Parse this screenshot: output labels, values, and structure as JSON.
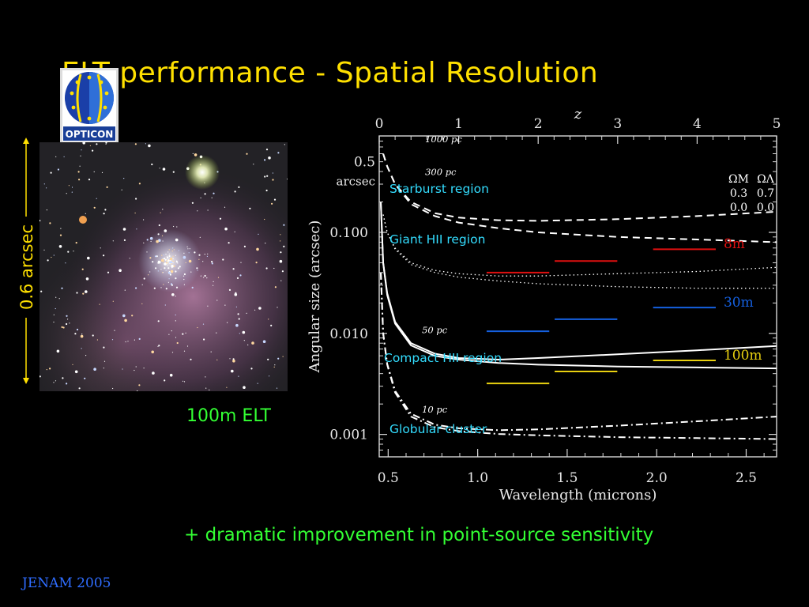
{
  "slide": {
    "title": "ELT performance - Spatial Resolution",
    "logo_text": "OPTICON",
    "scale_label": "0.6 arcsec",
    "image_caption": "100m ELT",
    "bottom_note": "+ dramatic improvement in point-source sensitivity",
    "footer": "JENAM 2005",
    "colors": {
      "title": "#ffe000",
      "caption": "#33ff33",
      "footer": "#2f6dff",
      "scale_bar": "#ffe000",
      "region_label": "#33ddff"
    }
  },
  "chart_data": {
    "type": "line",
    "xlabel": "Wavelength (microns)",
    "ylabel": "Angular size (arcsec)",
    "top_axis_label": "z",
    "xlim": [
      0.45,
      2.67
    ],
    "ylim": [
      0.0006,
      0.9
    ],
    "yscale": "log",
    "grid": false,
    "x_ticks": [
      0.5,
      1.0,
      1.5,
      2.0,
      2.5
    ],
    "x_tick_labels": [
      "0.5",
      "1.0",
      "1.5",
      "2.0",
      "2.5"
    ],
    "y_ticks": [
      0.001,
      0.01,
      0.1
    ],
    "y_tick_labels": [
      "0.001",
      "0.010",
      "0.100"
    ],
    "top_ticks": [
      0,
      1,
      2,
      3,
      4,
      5
    ],
    "top_tick_labels": [
      "0",
      "1",
      "2",
      "3",
      "4",
      "5"
    ],
    "y_extra_label": {
      "value": 0.5,
      "lines": [
        "0.5",
        "arcsec"
      ]
    },
    "cosmology_legend": {
      "header": [
        "ΩM",
        "ΩΛ"
      ],
      "rows": [
        [
          "0.3",
          "0.7"
        ],
        [
          "0.0",
          "0.0"
        ]
      ]
    },
    "series": [
      {
        "size_label": "1000 pc",
        "region": "Starburst  region",
        "style": "dashed",
        "z": [
          0.05,
          0.1,
          0.2,
          0.4,
          0.7,
          1.0,
          1.5,
          2.0,
          3.0,
          4.0,
          5.0
        ],
        "y_open": [
          0.6,
          0.45,
          0.3,
          0.2,
          0.155,
          0.14,
          0.132,
          0.13,
          0.135,
          0.145,
          0.16
        ],
        "y_flat": [
          0.6,
          0.45,
          0.3,
          0.19,
          0.145,
          0.125,
          0.11,
          0.1,
          0.09,
          0.085,
          0.08
        ]
      },
      {
        "size_label": "300 pc",
        "region": "Giant HII  region",
        "style": "dotted",
        "z": [
          0.05,
          0.1,
          0.2,
          0.4,
          0.7,
          1.0,
          1.5,
          2.0,
          3.0,
          4.0,
          5.0
        ],
        "y_open": [
          0.15,
          0.1,
          0.07,
          0.05,
          0.042,
          0.039,
          0.037,
          0.037,
          0.039,
          0.041,
          0.045
        ],
        "y_flat": [
          0.15,
          0.1,
          0.068,
          0.048,
          0.04,
          0.036,
          0.033,
          0.031,
          0.029,
          0.028,
          0.028
        ]
      },
      {
        "size_label": "50 pc",
        "region": "Compact HII region",
        "style": "solid",
        "z": [
          0.02,
          0.05,
          0.1,
          0.2,
          0.4,
          0.7,
          1.0,
          1.5,
          2.0,
          3.0,
          4.0,
          5.0
        ],
        "y_open": [
          0.2,
          0.05,
          0.025,
          0.013,
          0.008,
          0.0063,
          0.0057,
          0.0055,
          0.0057,
          0.0062,
          0.0068,
          0.0075
        ],
        "y_flat": [
          0.2,
          0.05,
          0.024,
          0.0125,
          0.0076,
          0.006,
          0.0055,
          0.0051,
          0.0049,
          0.0047,
          0.0046,
          0.0045
        ]
      },
      {
        "size_label": "10 pc",
        "region": "Globular cluster",
        "style": "dashdot",
        "z": [
          0.02,
          0.05,
          0.1,
          0.2,
          0.4,
          0.7,
          1.0,
          1.5,
          2.0,
          3.0,
          4.0,
          5.0
        ],
        "y_open": [
          0.04,
          0.01,
          0.005,
          0.0027,
          0.0016,
          0.00125,
          0.00115,
          0.0011,
          0.00112,
          0.00122,
          0.00135,
          0.0015
        ],
        "y_flat": [
          0.04,
          0.01,
          0.0049,
          0.0026,
          0.0015,
          0.00118,
          0.00108,
          0.00101,
          0.00098,
          0.00094,
          0.00092,
          0.0009
        ]
      }
    ],
    "diffraction_limits": [
      {
        "label": "8m",
        "color": "#e01010",
        "segments": [
          [
            1.05,
            1.4,
            0.04
          ],
          [
            1.43,
            1.78,
            0.052
          ],
          [
            1.98,
            2.33,
            0.068
          ]
        ]
      },
      {
        "label": "30m",
        "color": "#1560e0",
        "segments": [
          [
            1.05,
            1.4,
            0.0105
          ],
          [
            1.43,
            1.78,
            0.0138
          ],
          [
            1.98,
            2.33,
            0.018
          ]
        ]
      },
      {
        "label": "100m",
        "color": "#e8d010",
        "segments": [
          [
            1.05,
            1.4,
            0.0032
          ],
          [
            1.43,
            1.78,
            0.0042
          ],
          [
            1.98,
            2.33,
            0.0054
          ]
        ]
      }
    ]
  }
}
